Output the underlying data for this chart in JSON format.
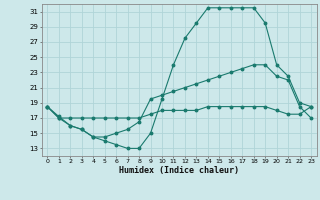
{
  "bg_color": "#cde8ea",
  "grid_color": "#b0d4d8",
  "line_color": "#1a7a6e",
  "xlabel": "Humidex (Indice chaleur)",
  "xlim": [
    -0.5,
    23.5
  ],
  "ylim": [
    12,
    32
  ],
  "yticks": [
    13,
    15,
    17,
    19,
    21,
    23,
    25,
    27,
    29,
    31
  ],
  "xticks": [
    0,
    1,
    2,
    3,
    4,
    5,
    6,
    7,
    8,
    9,
    10,
    11,
    12,
    13,
    14,
    15,
    16,
    17,
    18,
    19,
    20,
    21,
    22,
    23
  ],
  "series1_x": [
    0,
    1,
    2,
    3,
    4,
    5,
    6,
    7,
    8,
    9,
    10,
    11,
    12,
    13,
    14,
    15,
    16,
    17,
    18,
    19,
    20,
    21,
    22,
    23
  ],
  "series1_y": [
    18.5,
    17.2,
    16.0,
    15.5,
    14.5,
    14.0,
    13.5,
    13.0,
    13.0,
    15.0,
    19.5,
    24.0,
    27.5,
    29.5,
    31.5,
    31.5,
    31.5,
    31.5,
    31.5,
    29.5,
    24.0,
    22.5,
    19.0,
    18.5
  ],
  "series2_x": [
    0,
    1,
    2,
    3,
    4,
    5,
    6,
    7,
    8,
    9,
    10,
    11,
    12,
    13,
    14,
    15,
    16,
    17,
    18,
    19,
    20,
    21,
    22,
    23
  ],
  "series2_y": [
    18.5,
    17.0,
    16.0,
    15.5,
    14.5,
    14.5,
    15.0,
    15.5,
    16.5,
    19.5,
    20.0,
    20.5,
    21.0,
    21.5,
    22.0,
    22.5,
    23.0,
    23.5,
    24.0,
    24.0,
    22.5,
    22.0,
    18.5,
    17.0
  ],
  "series3_x": [
    0,
    1,
    2,
    3,
    4,
    5,
    6,
    7,
    8,
    9,
    10,
    11,
    12,
    13,
    14,
    15,
    16,
    17,
    18,
    19,
    20,
    21,
    22,
    23
  ],
  "series3_y": [
    18.5,
    17.0,
    17.0,
    17.0,
    17.0,
    17.0,
    17.0,
    17.0,
    17.0,
    17.5,
    18.0,
    18.0,
    18.0,
    18.0,
    18.5,
    18.5,
    18.5,
    18.5,
    18.5,
    18.5,
    18.0,
    17.5,
    17.5,
    18.5
  ]
}
